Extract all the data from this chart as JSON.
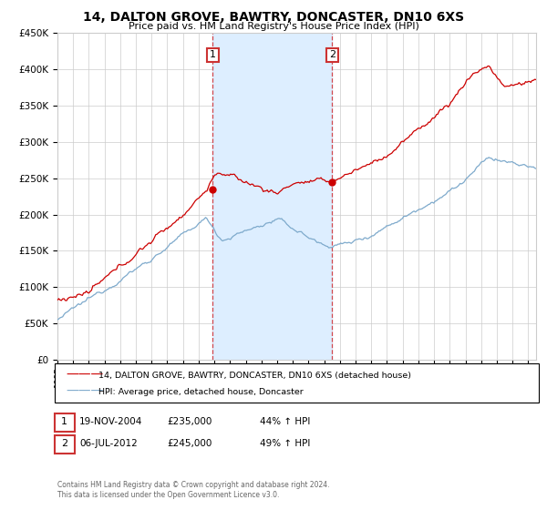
{
  "title": "14, DALTON GROVE, BAWTRY, DONCASTER, DN10 6XS",
  "subtitle": "Price paid vs. HM Land Registry's House Price Index (HPI)",
  "legend_line1": "14, DALTON GROVE, BAWTRY, DONCASTER, DN10 6XS (detached house)",
  "legend_line2": "HPI: Average price, detached house, Doncaster",
  "annotation1_date": "19-NOV-2004",
  "annotation1_price": "£235,000",
  "annotation1_hpi": "44% ↑ HPI",
  "annotation2_date": "06-JUL-2012",
  "annotation2_price": "£245,000",
  "annotation2_hpi": "49% ↑ HPI",
  "footer": "Contains HM Land Registry data © Crown copyright and database right 2024.\nThis data is licensed under the Open Government Licence v3.0.",
  "red_color": "#cc0000",
  "blue_color": "#7eaacc",
  "bg_color": "#ffffff",
  "grid_color": "#cccccc",
  "shade_color": "#ddeeff",
  "sale1_year": 2004.89,
  "sale1_value": 235000,
  "sale2_year": 2012.51,
  "sale2_value": 245000,
  "ylim_min": 0,
  "ylim_max": 450000,
  "xlim_min": 1995.0,
  "xlim_max": 2025.5
}
